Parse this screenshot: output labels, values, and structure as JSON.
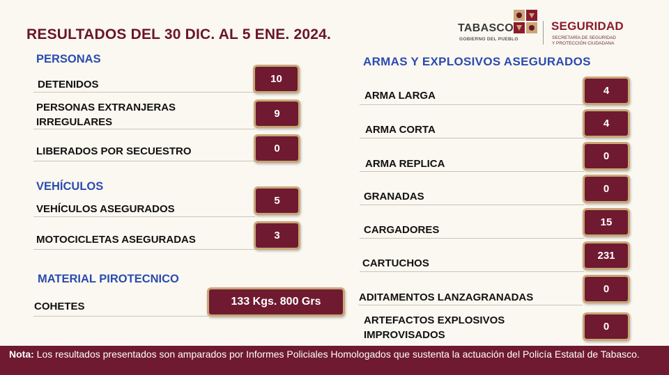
{
  "title": "RESULTADOS DEL 30 DIC. AL 5 ENE. 2024.",
  "logo": {
    "tabasco": "TABASCO",
    "tabasco_sub": "GOBIERNO DEL PUEBLO",
    "seguridad": "SEGURIDAD",
    "seguridad_sub1": "SECRETARÍA DE SEGURIDAD",
    "seguridad_sub2": "Y PROTECCIÓN CIUDADANA"
  },
  "personas": {
    "title": "PERSONAS",
    "rows": [
      {
        "label": "DETENIDOS",
        "value": "10"
      },
      {
        "label1": "PERSONAS EXTRANJERAS",
        "label2": "IRREGULARES",
        "value": "9"
      },
      {
        "label": "LIBERADOS POR SECUESTRO",
        "value": "0"
      }
    ]
  },
  "vehiculos": {
    "title": "VEHÍCULOS",
    "rows": [
      {
        "label": "VEHÍCULOS ASEGURADOS",
        "value": "5"
      },
      {
        "label": "MOTOCICLETAS ASEGURADAS",
        "value": "3"
      }
    ]
  },
  "pirotecnico": {
    "title": "MATERIAL PIROTECNICO",
    "rows": [
      {
        "label": "COHETES",
        "value": "133 Kgs. 800 Grs"
      }
    ]
  },
  "armas": {
    "title": "ARMAS Y EXPLOSIVOS ASEGURADOS",
    "rows": [
      {
        "label": "ARMA LARGA",
        "value": "4"
      },
      {
        "label": "ARMA CORTA",
        "value": "4"
      },
      {
        "label": "ARMA REPLICA",
        "value": "0"
      },
      {
        "label": "GRANADAS",
        "value": "0"
      },
      {
        "label": "CARGADORES",
        "value": "15"
      },
      {
        "label": "CARTUCHOS",
        "value": "231"
      },
      {
        "label": "ADITAMENTOS LANZAGRANADAS",
        "value": "0"
      },
      {
        "label1": "ARTEFACTOS EXPLOSIVOS",
        "label2": "IMPROVISADOS",
        "value": "0"
      }
    ]
  },
  "footer": {
    "note_label": "Nota:",
    "note_text": " Los resultados presentados son amparados por Informes Policiales Homologados que sustenta la actuación del Policía Estatal de Tabasco."
  },
  "colors": {
    "title": "#6b1527",
    "section": "#2b4bb0",
    "box_fill": "#6f1a30",
    "box_border": "#c9a777",
    "footer_bg": "#6f1a30",
    "background": "#faf8f0"
  }
}
